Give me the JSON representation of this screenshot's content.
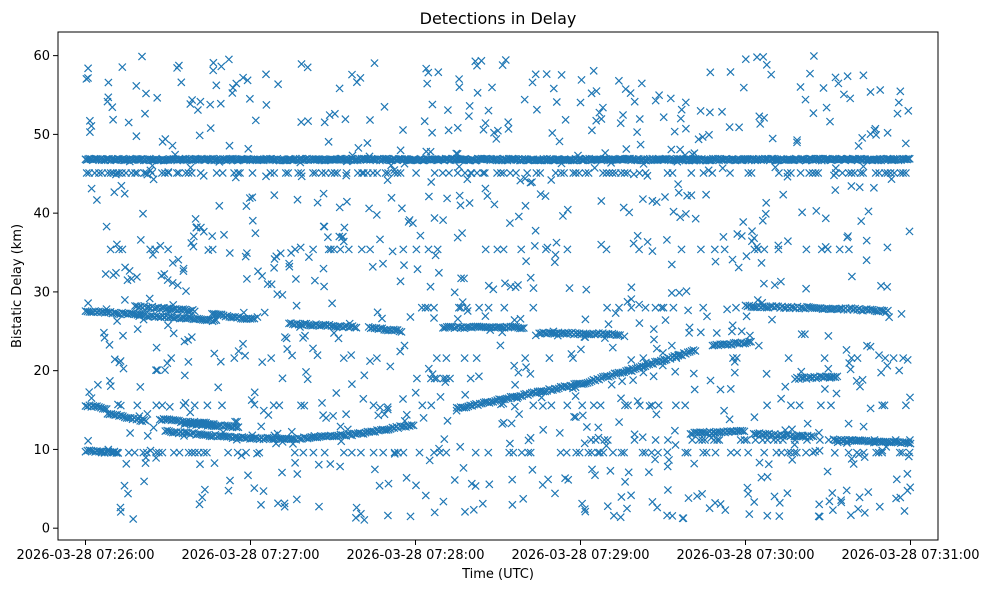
{
  "chart_data": {
    "type": "scatter",
    "title": "Detections in Delay",
    "xlabel": "Time (UTC)",
    "ylabel": "Bistatic Delay (km)",
    "x_start": "2026-03-28 07:26:00",
    "xlim": [
      "2026-03-28 07:25:50",
      "2026-03-28 07:31:10"
    ],
    "ylim": [
      -1.5,
      63
    ],
    "xticks": [
      "2026-03-28 07:26:00",
      "2026-03-28 07:27:00",
      "2026-03-28 07:28:00",
      "2026-03-28 07:29:00",
      "2026-03-28 07:30:00",
      "2026-03-28 07:31:00"
    ],
    "yticks": [
      0,
      10,
      20,
      30,
      40,
      50,
      60
    ],
    "marker": "x",
    "color": "#1f77b4",
    "grid": false,
    "tracks": [
      {
        "x": [
          0,
          300
        ],
        "y": [
          46.8,
          46.8
        ]
      },
      {
        "x": [
          0,
          22,
          40,
          48
        ],
        "y": [
          27.6,
          27.0,
          26.6,
          26.3
        ]
      },
      {
        "x": [
          18,
          40
        ],
        "y": [
          28.2,
          27.6
        ]
      },
      {
        "x": [
          46,
          62
        ],
        "y": [
          27.2,
          26.5
        ]
      },
      {
        "x": [
          74,
          99
        ],
        "y": [
          26.0,
          25.5
        ]
      },
      {
        "x": [
          103,
          115
        ],
        "y": [
          25.5,
          25.0
        ]
      },
      {
        "x": [
          0,
          12
        ],
        "y": [
          9.8,
          9.6
        ]
      },
      {
        "x": [
          0,
          8
        ],
        "y": [
          15.6,
          15.2
        ]
      },
      {
        "x": [
          8,
          22
        ],
        "y": [
          14.6,
          13.6
        ]
      },
      {
        "x": [
          27,
          47
        ],
        "y": [
          13.8,
          13.2
        ]
      },
      {
        "x": [
          29,
          55,
          75,
          100,
          120
        ],
        "y": [
          12.3,
          11.5,
          11.3,
          12.0,
          13.2
        ]
      },
      {
        "x": [
          36,
          56
        ],
        "y": [
          13.3,
          12.8
        ]
      },
      {
        "x": [
          135,
          158,
          182,
          205,
          222
        ],
        "y": [
          15.2,
          16.8,
          18.5,
          20.8,
          22.6
        ]
      },
      {
        "x": [
          228,
          242
        ],
        "y": [
          23.2,
          23.6
        ]
      },
      {
        "x": [
          240,
          262,
          280,
          292
        ],
        "y": [
          28.2,
          28.0,
          27.8,
          27.5
        ]
      },
      {
        "x": [
          220,
          240
        ],
        "y": [
          12.0,
          12.4
        ]
      },
      {
        "x": [
          243,
          265
        ],
        "y": [
          12.0,
          11.6
        ]
      },
      {
        "x": [
          272,
          300
        ],
        "y": [
          11.2,
          10.8
        ]
      },
      {
        "x": [
          258,
          274
        ],
        "y": [
          19.0,
          19.3
        ]
      },
      {
        "x": [
          130,
          160
        ],
        "y": [
          25.5,
          25.5
        ]
      },
      {
        "x": [
          165,
          195
        ],
        "y": [
          24.8,
          24.6
        ]
      }
    ],
    "levels": [
      {
        "y": 45.1,
        "x0": 0,
        "x1": 300,
        "density": 0.45
      },
      {
        "y": 35.4,
        "x0": 0,
        "x1": 300,
        "density": 0.12
      },
      {
        "y": 28.0,
        "x0": 110,
        "x1": 240,
        "density": 0.12
      },
      {
        "y": 21.6,
        "x0": 0,
        "x1": 300,
        "density": 0.1
      },
      {
        "y": 15.6,
        "x0": 0,
        "x1": 300,
        "density": 0.12
      },
      {
        "y": 11.2,
        "x0": 160,
        "x1": 300,
        "density": 0.25
      },
      {
        "y": 9.6,
        "x0": 0,
        "x1": 300,
        "density": 0.3
      },
      {
        "y": 19.0,
        "x0": 120,
        "x1": 140,
        "density": 0.4
      }
    ],
    "random_points": 900
  }
}
